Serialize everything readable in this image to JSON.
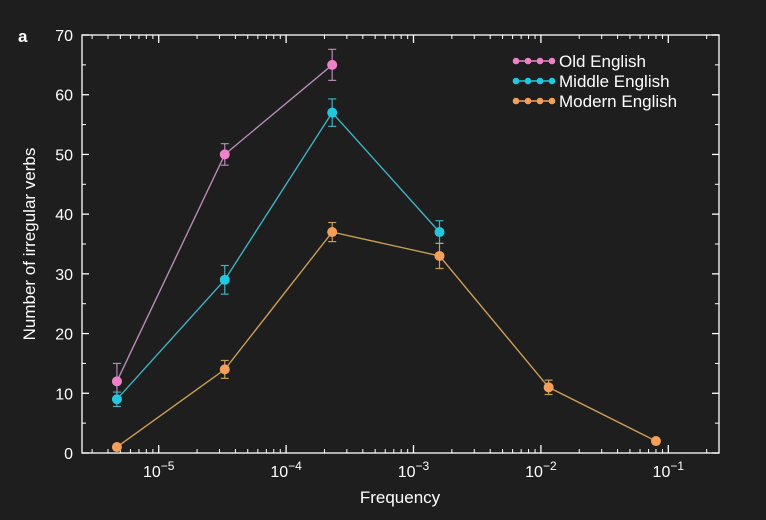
{
  "panel_label": "a",
  "colors": {
    "background": "#1e1e1e",
    "axis": "#ffffff"
  },
  "chart_data": {
    "type": "line",
    "xlabel": "Frequency",
    "ylabel": "Number of irregular verbs",
    "x_scale": "log",
    "xlim": [
      2.5e-06,
      0.25
    ],
    "ylim": [
      0,
      70
    ],
    "x_ticks": [
      {
        "value": 1e-05,
        "base": "10",
        "exp": "−5"
      },
      {
        "value": 0.0001,
        "base": "10",
        "exp": "−4"
      },
      {
        "value": 0.001,
        "base": "10",
        "exp": "−3"
      },
      {
        "value": 0.01,
        "base": "10",
        "exp": "−2"
      },
      {
        "value": 0.1,
        "base": "10",
        "exp": "−1"
      }
    ],
    "y_ticks": [
      0,
      10,
      20,
      30,
      40,
      50,
      60,
      70
    ],
    "grid": false,
    "legend_position": "top-right",
    "series": [
      {
        "name": "Old English",
        "color": "#ee82c8",
        "line_color": "#b58ab5",
        "points": [
          {
            "x": 4.7e-06,
            "y": 12,
            "err": 3
          },
          {
            "x": 3.3e-05,
            "y": 50,
            "err": 1.8
          },
          {
            "x": 0.00023,
            "y": 65,
            "err": 2.6
          }
        ]
      },
      {
        "name": "Middle English",
        "color": "#22c8e0",
        "line_color": "#3fb0c0",
        "points": [
          {
            "x": 4.7e-06,
            "y": 9,
            "err": 1.2
          },
          {
            "x": 3.3e-05,
            "y": 29,
            "err": 2.4
          },
          {
            "x": 0.00023,
            "y": 57,
            "err": 2.3
          },
          {
            "x": 0.0016,
            "y": 37,
            "err": 1.9
          }
        ]
      },
      {
        "name": "Modern English",
        "color": "#f5a05a",
        "line_color": "#c99d55",
        "points": [
          {
            "x": 4.7e-06,
            "y": 1,
            "err": 0
          },
          {
            "x": 3.3e-05,
            "y": 14,
            "err": 1.5
          },
          {
            "x": 0.00023,
            "y": 37,
            "err": 1.6
          },
          {
            "x": 0.0016,
            "y": 33,
            "err": 2.1
          },
          {
            "x": 0.0115,
            "y": 11,
            "err": 1.2
          },
          {
            "x": 0.08,
            "y": 2,
            "err": 0
          }
        ]
      }
    ]
  }
}
